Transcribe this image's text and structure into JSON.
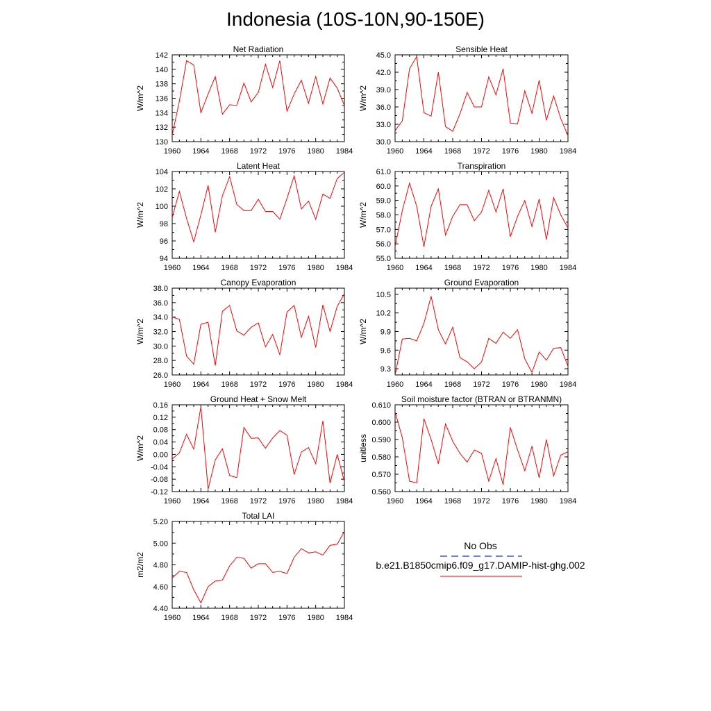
{
  "title": "Indonesia (10S-10N,90-150E)",
  "legend": {
    "obs_label": "No Obs",
    "obs_color": "#2233bb",
    "model_label": "b.e21.B1850cmip6.f09_g17.DAMIP-hist-ghg.002",
    "model_color": "#ff0000"
  },
  "chart_data": [
    {
      "type": "line",
      "title": "Net Radiation",
      "ylabel": "W/m^2",
      "x": [
        1960,
        1961,
        1962,
        1963,
        1964,
        1965,
        1966,
        1967,
        1968,
        1969,
        1970,
        1971,
        1972,
        1973,
        1974,
        1975,
        1976,
        1977,
        1978,
        1979,
        1980,
        1981,
        1982,
        1983,
        1984
      ],
      "values": [
        130.9,
        135.6,
        141.2,
        140.6,
        134.0,
        136.6,
        139.0,
        133.8,
        135.1,
        135.0,
        138.1,
        135.5,
        136.8,
        140.7,
        137.5,
        141.2,
        134.2,
        136.6,
        138.5,
        135.3,
        139.0,
        135.2,
        138.8,
        137.4,
        135.0
      ],
      "ylim": [
        130,
        142
      ],
      "yticks": [
        "130",
        "132",
        "134",
        "136",
        "138",
        "140",
        "142"
      ],
      "xlim": [
        1960,
        1984
      ],
      "xticks": [
        "1960",
        "1964",
        "1968",
        "1972",
        "1976",
        "1980",
        "1984"
      ],
      "color": "#ff0000"
    },
    {
      "type": "line",
      "title": "Sensible Heat",
      "ylabel": "W/m^2",
      "x": [
        1960,
        1961,
        1962,
        1963,
        1964,
        1965,
        1966,
        1967,
        1968,
        1969,
        1970,
        1971,
        1972,
        1973,
        1974,
        1975,
        1976,
        1977,
        1978,
        1979,
        1980,
        1981,
        1982,
        1983,
        1984
      ],
      "values": [
        31.9,
        33.6,
        42.6,
        44.7,
        35.0,
        34.4,
        42.0,
        32.6,
        31.8,
        34.8,
        38.5,
        36.0,
        36.0,
        41.2,
        38.1,
        42.6,
        33.2,
        33.1,
        38.8,
        34.9,
        40.6,
        33.7,
        37.9,
        34.0,
        31.0
      ],
      "ylim": [
        30,
        45
      ],
      "yticks": [
        "30.0",
        "33.0",
        "36.0",
        "39.0",
        "42.0",
        "45.0"
      ],
      "xlim": [
        1960,
        1984
      ],
      "xticks": [
        "1960",
        "1964",
        "1968",
        "1972",
        "1976",
        "1980",
        "1984"
      ],
      "color": "#ff0000"
    },
    {
      "type": "line",
      "title": "Latent Heat",
      "ylabel": "W/m^2",
      "x": [
        1960,
        1961,
        1962,
        1963,
        1964,
        1965,
        1966,
        1967,
        1968,
        1969,
        1970,
        1971,
        1972,
        1973,
        1974,
        1975,
        1976,
        1977,
        1978,
        1979,
        1980,
        1981,
        1982,
        1983,
        1984
      ],
      "values": [
        98.7,
        101.7,
        98.6,
        95.9,
        99.0,
        102.4,
        97.0,
        101.2,
        103.4,
        100.2,
        99.5,
        99.5,
        100.8,
        99.4,
        99.4,
        98.5,
        100.9,
        103.5,
        99.7,
        100.6,
        98.5,
        101.4,
        100.9,
        103.2,
        103.9
      ],
      "ylim": [
        94,
        104
      ],
      "yticks": [
        "94",
        "96",
        "98",
        "100",
        "102",
        "104"
      ],
      "xlim": [
        1960,
        1984
      ],
      "xticks": [
        "1960",
        "1964",
        "1968",
        "1972",
        "1976",
        "1980",
        "1984"
      ],
      "color": "#ff0000"
    },
    {
      "type": "line",
      "title": "Transpiration",
      "ylabel": "W/m^2",
      "x": [
        1960,
        1961,
        1962,
        1963,
        1964,
        1965,
        1966,
        1967,
        1968,
        1969,
        1970,
        1971,
        1972,
        1973,
        1974,
        1975,
        1976,
        1977,
        1978,
        1979,
        1980,
        1981,
        1982,
        1983,
        1984
      ],
      "values": [
        55.8,
        58.3,
        60.2,
        58.6,
        55.8,
        58.6,
        59.8,
        56.6,
        57.9,
        58.7,
        58.7,
        57.6,
        58.2,
        59.7,
        58.2,
        59.8,
        56.5,
        57.9,
        59.0,
        57.2,
        59.1,
        56.3,
        59.2,
        58.0,
        57.1
      ],
      "ylim": [
        55,
        61
      ],
      "yticks": [
        "55.0",
        "56.0",
        "57.0",
        "58.0",
        "59.0",
        "60.0",
        "61.0"
      ],
      "xlim": [
        1960,
        1984
      ],
      "xticks": [
        "1960",
        "1964",
        "1968",
        "1972",
        "1976",
        "1980",
        "1984"
      ],
      "color": "#ff0000"
    },
    {
      "type": "line",
      "title": "Canopy Evaporation",
      "ylabel": "W/m^2",
      "x": [
        1960,
        1961,
        1962,
        1963,
        1964,
        1965,
        1966,
        1967,
        1968,
        1969,
        1970,
        1971,
        1972,
        1973,
        1974,
        1975,
        1976,
        1977,
        1978,
        1979,
        1980,
        1981,
        1982,
        1983,
        1984
      ],
      "values": [
        34.0,
        33.7,
        28.6,
        27.5,
        33.0,
        33.3,
        27.3,
        34.8,
        35.6,
        32.1,
        31.5,
        32.6,
        33.2,
        29.9,
        31.6,
        28.8,
        34.7,
        35.6,
        31.2,
        34.1,
        29.8,
        35.7,
        32.0,
        35.5,
        37.2
      ],
      "ylim": [
        26,
        38
      ],
      "yticks": [
        "26.0",
        "28.0",
        "30.0",
        "32.0",
        "34.0",
        "36.0",
        "38.0"
      ],
      "xlim": [
        1960,
        1984
      ],
      "xticks": [
        "1960",
        "1964",
        "1968",
        "1972",
        "1976",
        "1980",
        "1984"
      ],
      "color": "#ff0000"
    },
    {
      "type": "line",
      "title": "Ground Evaporation",
      "ylabel": "W/m^2",
      "x": [
        1960,
        1961,
        1962,
        1963,
        1964,
        1965,
        1966,
        1967,
        1968,
        1969,
        1970,
        1971,
        1972,
        1973,
        1974,
        1975,
        1976,
        1977,
        1978,
        1979,
        1980,
        1981,
        1982,
        1983,
        1984
      ],
      "values": [
        9.2,
        9.78,
        9.79,
        9.75,
        10.03,
        10.47,
        9.93,
        9.7,
        9.97,
        9.48,
        9.41,
        9.3,
        9.41,
        9.79,
        9.71,
        9.89,
        9.79,
        9.93,
        9.46,
        9.24,
        9.57,
        9.44,
        9.63,
        9.64,
        9.34
      ],
      "ylim": [
        9.2,
        10.6
      ],
      "yticks": [
        "9.3",
        "9.6",
        "9.9",
        "10.2",
        "10.5"
      ],
      "ytickvals": [
        9.3,
        9.6,
        9.9,
        10.2,
        10.5
      ],
      "xlim": [
        1960,
        1984
      ],
      "xticks": [
        "1960",
        "1964",
        "1968",
        "1972",
        "1976",
        "1980",
        "1984"
      ],
      "color": "#ff0000"
    },
    {
      "type": "line",
      "title": "Ground Heat + Snow Melt",
      "ylabel": "W/m^2",
      "x": [
        1960,
        1961,
        1962,
        1963,
        1964,
        1965,
        1966,
        1967,
        1968,
        1969,
        1970,
        1971,
        1972,
        1973,
        1974,
        1975,
        1976,
        1977,
        1978,
        1979,
        1980,
        1981,
        1982,
        1983,
        1984
      ],
      "values": [
        -0.015,
        0.005,
        0.065,
        0.017,
        0.153,
        -0.112,
        -0.018,
        0.018,
        -0.068,
        -0.075,
        0.087,
        0.052,
        0.053,
        0.02,
        0.053,
        0.077,
        0.062,
        -0.065,
        0.008,
        0.022,
        -0.03,
        0.108,
        -0.093,
        0.0,
        -0.088
      ],
      "ylim": [
        -0.12,
        0.16
      ],
      "yticks": [
        "-0.12",
        "-0.08",
        "-0.04",
        "0.00",
        "0.04",
        "0.08",
        "0.12",
        "0.16"
      ],
      "xlim": [
        1960,
        1984
      ],
      "xticks": [
        "1960",
        "1964",
        "1968",
        "1972",
        "1976",
        "1980",
        "1984"
      ],
      "color": "#ff0000"
    },
    {
      "type": "line",
      "title": "Soil moisture factor (BTRAN or BTRANMN)",
      "ylabel": "unitless",
      "x": [
        1960,
        1961,
        1962,
        1963,
        1964,
        1965,
        1966,
        1967,
        1968,
        1969,
        1970,
        1971,
        1972,
        1973,
        1974,
        1975,
        1976,
        1977,
        1978,
        1979,
        1980,
        1981,
        1982,
        1983,
        1984
      ],
      "values": [
        0.606,
        0.591,
        0.566,
        0.565,
        0.602,
        0.59,
        0.576,
        0.599,
        0.589,
        0.582,
        0.577,
        0.584,
        0.582,
        0.566,
        0.579,
        0.564,
        0.597,
        0.584,
        0.572,
        0.586,
        0.568,
        0.59,
        0.569,
        0.581,
        0.583
      ],
      "ylim": [
        0.56,
        0.61
      ],
      "yticks": [
        "0.560",
        "0.570",
        "0.580",
        "0.590",
        "0.600",
        "0.610"
      ],
      "xlim": [
        1960,
        1984
      ],
      "xticks": [
        "1960",
        "1964",
        "1968",
        "1972",
        "1976",
        "1980",
        "1984"
      ],
      "color": "#ff0000"
    },
    {
      "type": "line",
      "title": "Total LAI",
      "ylabel": "m2/m2",
      "x": [
        1960,
        1961,
        1962,
        1963,
        1964,
        1965,
        1966,
        1967,
        1968,
        1969,
        1970,
        1971,
        1972,
        1973,
        1974,
        1975,
        1976,
        1977,
        1978,
        1979,
        1980,
        1981,
        1982,
        1983,
        1984
      ],
      "values": [
        4.68,
        4.74,
        4.73,
        4.57,
        4.45,
        4.6,
        4.65,
        4.66,
        4.79,
        4.87,
        4.86,
        4.77,
        4.81,
        4.81,
        4.73,
        4.74,
        4.72,
        4.87,
        4.95,
        4.91,
        4.92,
        4.89,
        4.98,
        4.99,
        5.11
      ],
      "ylim": [
        4.4,
        5.2
      ],
      "yticks": [
        "4.40",
        "4.60",
        "4.80",
        "5.00",
        "5.20"
      ],
      "xlim": [
        1960,
        1984
      ],
      "xticks": [
        "1960",
        "1964",
        "1968",
        "1972",
        "1976",
        "1980",
        "1984"
      ],
      "color": "#ff0000"
    }
  ]
}
